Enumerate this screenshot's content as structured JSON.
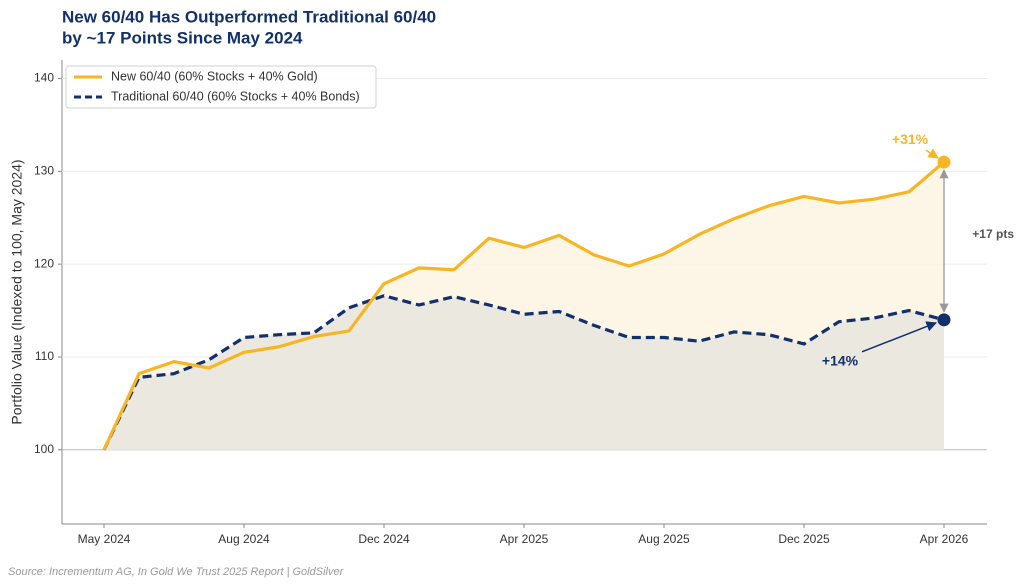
{
  "chart_data": {
    "type": "line",
    "title": [
      "New 60/40 Has Outperformed Traditional 60/40",
      "by ~17 Points Since May 2024"
    ],
    "y_label": "Portfolio Value (Indexed to 100, May 2024)",
    "source": "Source: Incrementum AG, In Gold We Trust 2025 Report | GoldSilver",
    "categories": [
      "May 2024",
      null,
      null,
      null,
      "Aug 2024",
      null,
      null,
      null,
      "Dec 2024",
      null,
      null,
      null,
      "Apr 2025",
      null,
      null,
      null,
      "Aug 2025",
      null,
      null,
      null,
      "Dec 2025",
      null,
      null,
      null,
      "Apr 2026"
    ],
    "series": [
      {
        "name": "New 60/40 (60% Stocks + 40% Gold)",
        "color": "#f7b523",
        "dash": false,
        "values": [
          100,
          108.2,
          109.5,
          108.8,
          110.5,
          111.1,
          112.2,
          112.8,
          117.9,
          119.6,
          119.4,
          122.8,
          121.8,
          123.1,
          121.0,
          119.8,
          121.1,
          123.2,
          124.9,
          126.3,
          127.3,
          126.6,
          127.0,
          127.8,
          131.0
        ]
      },
      {
        "name": "Traditional 60/40 (60% Stocks + 40% Bonds)",
        "color": "#12306a",
        "dash": true,
        "values": [
          100,
          107.8,
          108.2,
          109.7,
          112.1,
          112.4,
          112.6,
          115.3,
          116.6,
          115.6,
          116.5,
          115.6,
          114.6,
          114.9,
          113.4,
          112.1,
          112.1,
          111.7,
          112.7,
          112.4,
          111.4,
          113.8,
          114.2,
          115.0,
          114.0
        ]
      }
    ],
    "annotations": [
      "+31%",
      "+14%",
      "+17 pts"
    ],
    "ylim": [
      92,
      142
    ],
    "yticks": [
      100,
      110,
      120,
      130,
      140
    ],
    "grid": true,
    "legend": "upper left"
  }
}
